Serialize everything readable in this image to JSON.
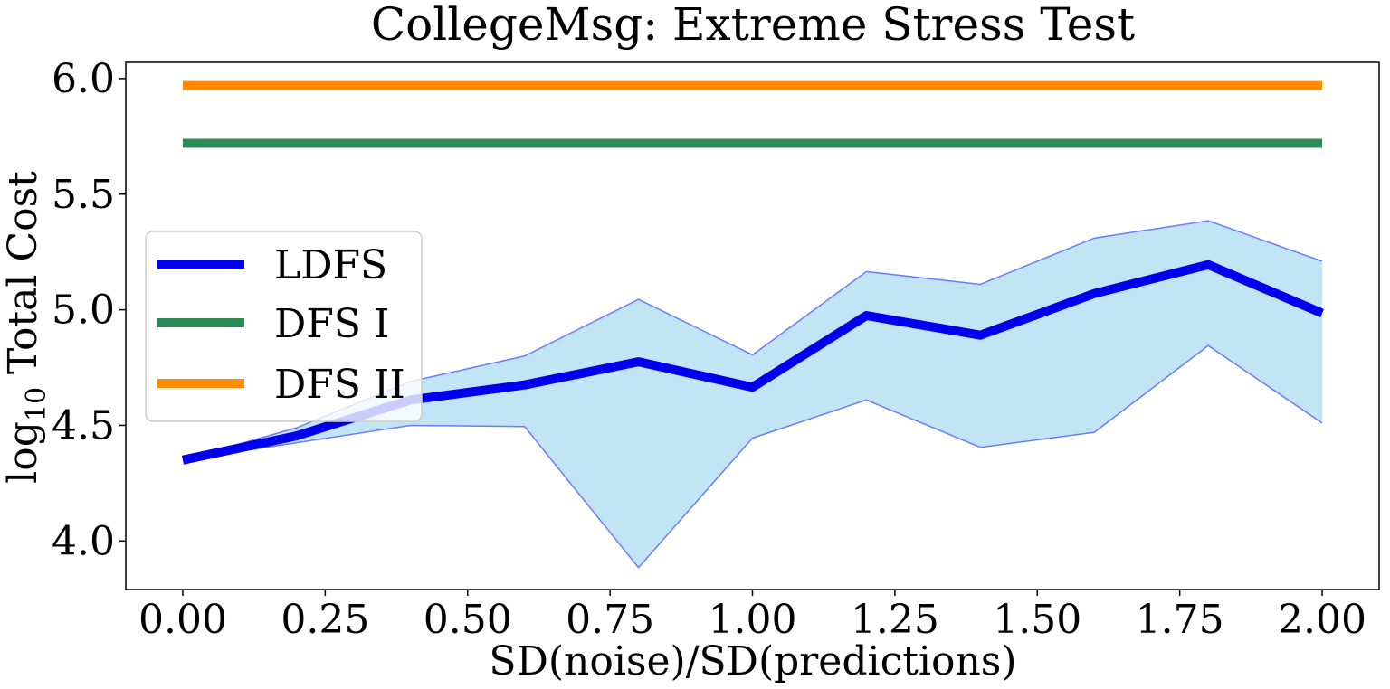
{
  "chart_data": {
    "type": "line",
    "title": "CollegeMsg: Extreme Stress Test",
    "xlabel": "SD(noise)/SD(predictions)",
    "ylabel": "log10 Total Cost",
    "ylabel_base": "log",
    "ylabel_sub": "10",
    "ylabel_rest": " Total Cost",
    "xlim": [
      -0.1,
      2.1
    ],
    "ylim": [
      3.79,
      6.07
    ],
    "xticks": [
      0.0,
      0.25,
      0.5,
      0.75,
      1.0,
      1.25,
      1.5,
      1.75,
      2.0
    ],
    "xtick_labels": [
      "0.00",
      "0.25",
      "0.50",
      "0.75",
      "1.00",
      "1.25",
      "1.50",
      "1.75",
      "2.00"
    ],
    "yticks": [
      4.0,
      4.5,
      5.0,
      5.5,
      6.0
    ],
    "ytick_labels": [
      "4.0",
      "4.5",
      "5.0",
      "5.5",
      "6.0"
    ],
    "x": [
      0.0,
      0.2,
      0.4,
      0.6,
      0.8,
      1.0,
      1.2,
      1.4,
      1.6,
      1.8,
      2.0
    ],
    "series": [
      {
        "name": "LDFS",
        "color": "#0000ee",
        "values": [
          4.35,
          4.455,
          4.61,
          4.675,
          4.775,
          4.665,
          4.975,
          4.89,
          5.07,
          5.195,
          4.985
        ],
        "band_upper": [
          4.35,
          4.49,
          4.69,
          4.8,
          5.045,
          4.805,
          5.165,
          5.11,
          5.31,
          5.385,
          5.21
        ],
        "band_lower": [
          4.35,
          4.425,
          4.5,
          4.495,
          3.885,
          4.445,
          4.61,
          4.405,
          4.47,
          4.845,
          4.51
        ],
        "band_fill": "#c2e5f5",
        "band_edge": "#6a7cff"
      },
      {
        "name": "DFS I",
        "color": "#2e8b57",
        "values": [
          5.72,
          5.72,
          5.72,
          5.72,
          5.72,
          5.72,
          5.72,
          5.72,
          5.72,
          5.72,
          5.72
        ]
      },
      {
        "name": "DFS II",
        "color": "#ff8c00",
        "values": [
          5.97,
          5.97,
          5.97,
          5.97,
          5.97,
          5.97,
          5.97,
          5.97,
          5.97,
          5.97,
          5.97
        ]
      }
    ],
    "legend": {
      "location": "center-left",
      "entries": [
        "LDFS",
        "DFS I",
        "DFS II"
      ]
    }
  }
}
